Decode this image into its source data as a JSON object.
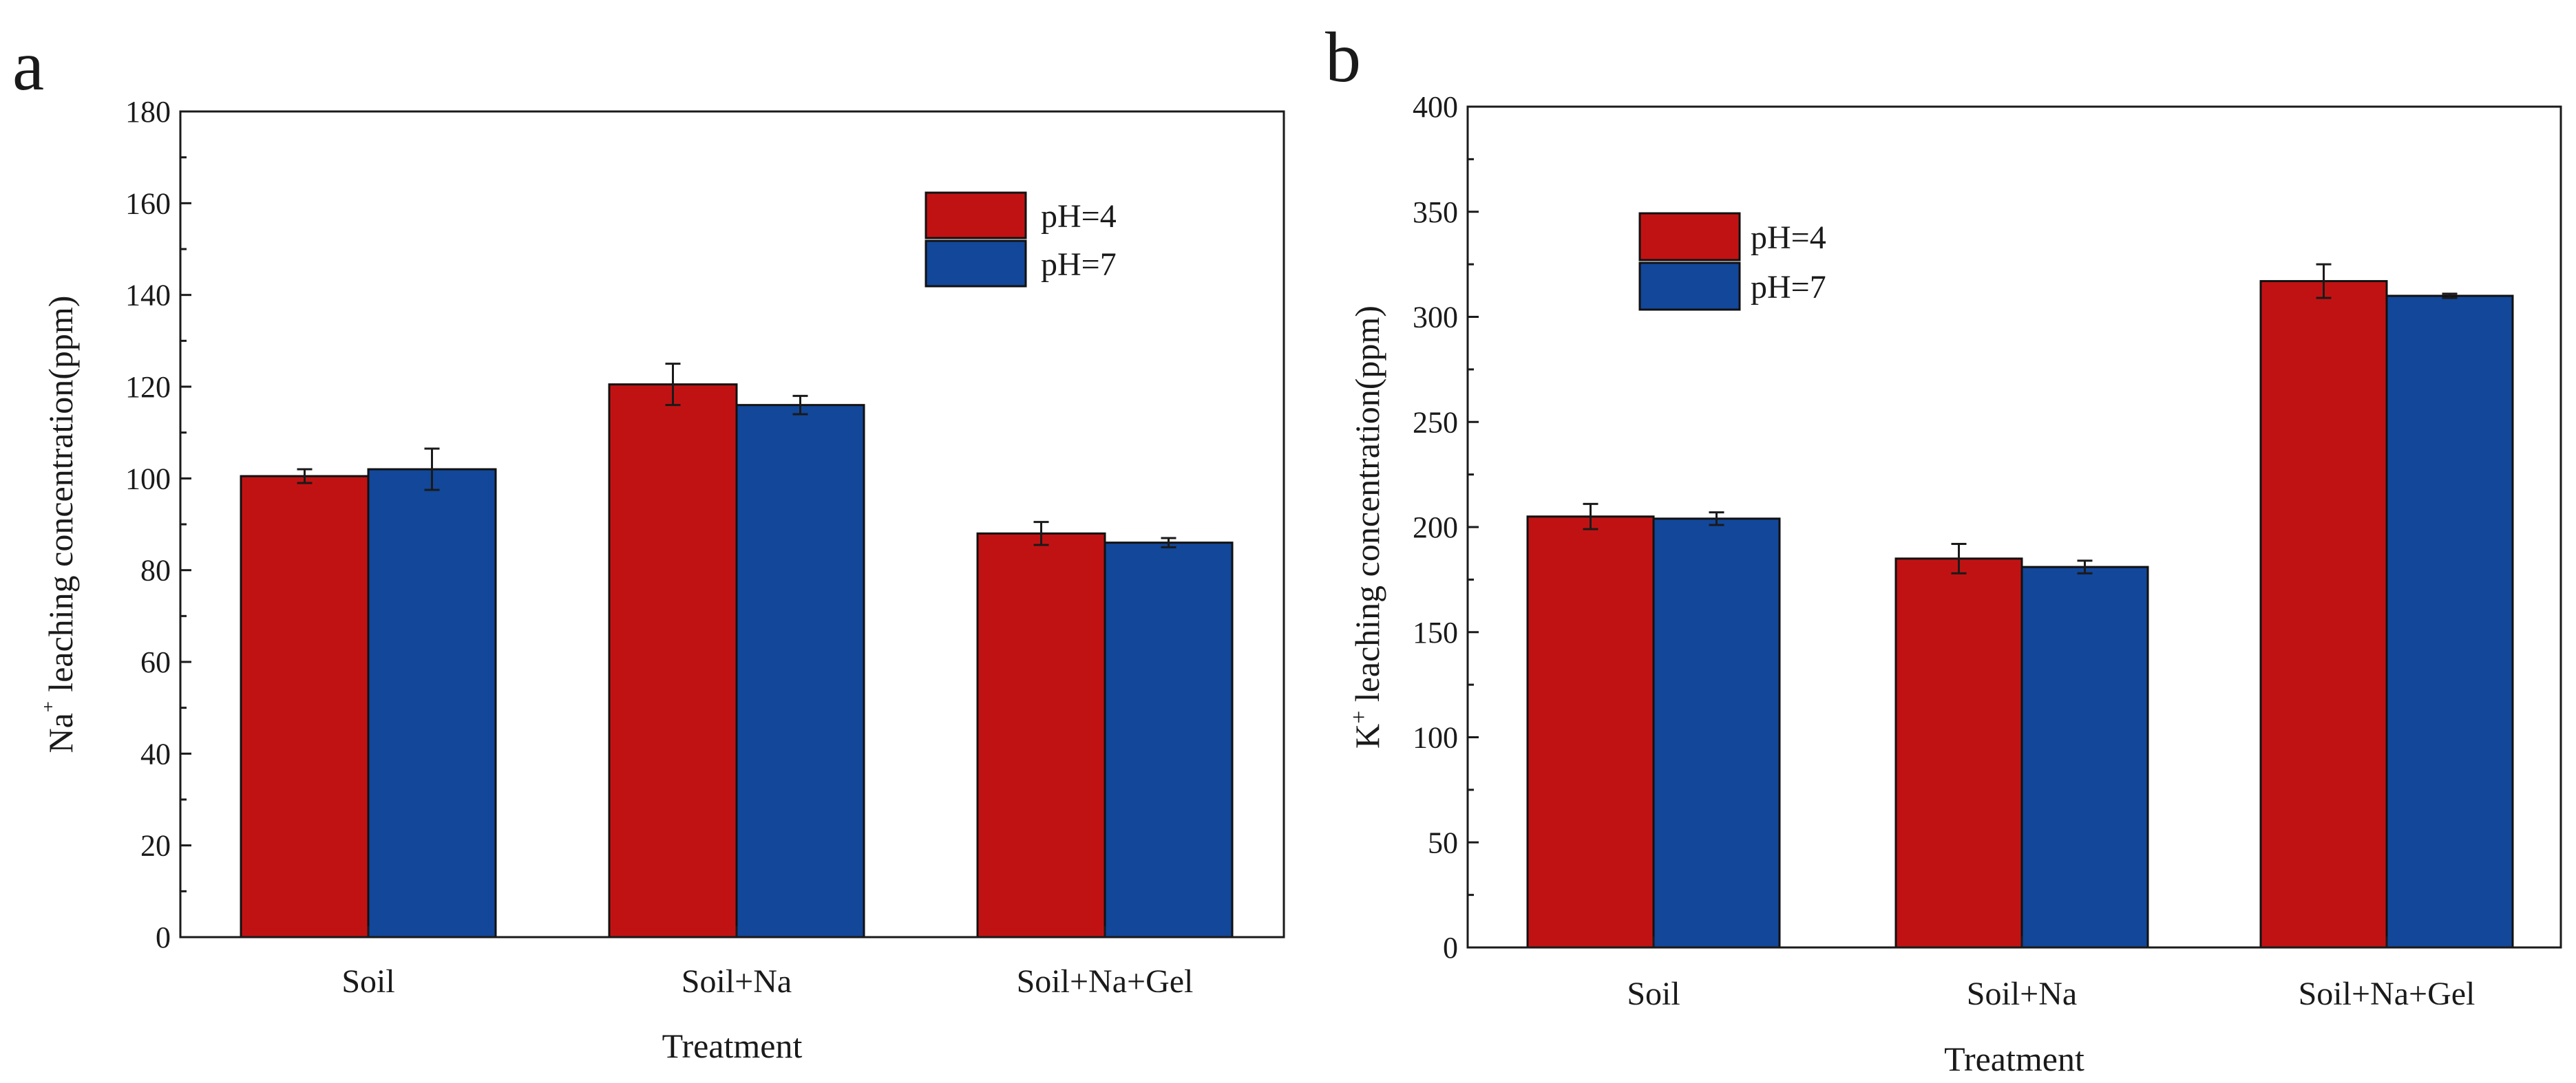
{
  "colors": {
    "pH4": "#c11213",
    "pH7": "#12479a",
    "axis": "#1a1a1a",
    "errorbar": "#1a1a1a"
  },
  "chart_data": [
    {
      "panel": "a",
      "type": "bar",
      "title": "",
      "xlabel": "Treatment",
      "ylabel_main": "Na",
      "ylabel_sup": "⁺",
      "ylabel_rest": " leaching concentration(ppm)",
      "categories": [
        "Soil",
        "Soil+Na",
        "Soil+Na+Gel"
      ],
      "ylim": [
        0,
        180
      ],
      "yticks": [
        0,
        20,
        40,
        60,
        80,
        100,
        120,
        140,
        160,
        180
      ],
      "legend": {
        "position": "top-right",
        "labels": [
          "pH=4",
          "pH=7"
        ]
      },
      "series": [
        {
          "name": "pH=4",
          "values": [
            100.5,
            120.5,
            88
          ],
          "errors": [
            1.5,
            4.5,
            2.5
          ]
        },
        {
          "name": "pH=7",
          "values": [
            102,
            116,
            86
          ],
          "errors": [
            4.5,
            2,
            1
          ]
        }
      ]
    },
    {
      "panel": "b",
      "type": "bar",
      "title": "",
      "xlabel": "Treatment",
      "ylabel_main": "K",
      "ylabel_sup": "+",
      "ylabel_rest": " leaching concentration(ppm)",
      "categories": [
        "Soil",
        "Soil+Na",
        "Soil+Na+Gel"
      ],
      "ylim": [
        0,
        400
      ],
      "yticks": [
        0,
        50,
        100,
        150,
        200,
        250,
        300,
        350,
        400
      ],
      "legend": {
        "position": "top-left",
        "labels": [
          "pH=4",
          "pH=7"
        ]
      },
      "series": [
        {
          "name": "pH=4",
          "values": [
            205,
            185,
            317
          ],
          "errors": [
            6,
            7,
            8
          ]
        },
        {
          "name": "pH=7",
          "values": [
            204,
            181,
            310
          ],
          "errors": [
            3,
            3,
            1
          ]
        }
      ]
    }
  ]
}
